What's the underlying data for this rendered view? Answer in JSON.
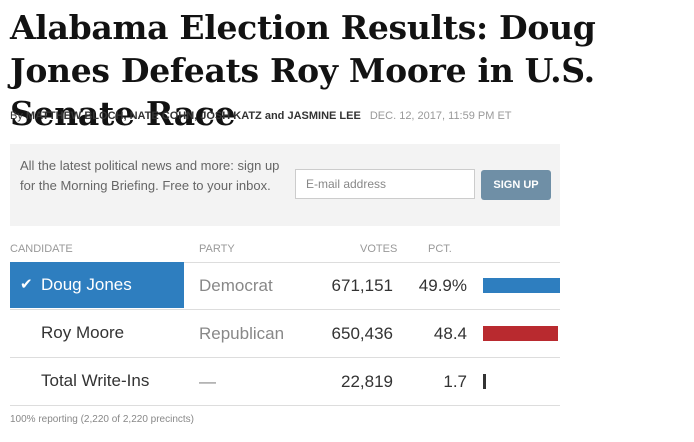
{
  "headline": "Alabama Election Results: Doug Jones Defeats Roy Moore in U.S. Senate Race",
  "byline": {
    "prefix": "By",
    "authors": "MATTHEW BLOCH, NATE COHN, JOSH KATZ and JASMINE LEE",
    "date": "DEC. 12, 2017,",
    "time": "11:59 PM ET"
  },
  "signup": {
    "text": "All the latest political news and more: sign up for the Morning Briefing. Free to your inbox.",
    "email_placeholder": "E-mail address",
    "button_label": "SIGN UP",
    "button_color": "#6f8fa6"
  },
  "table": {
    "headers": {
      "candidate": "CANDIDATE",
      "party": "PARTY",
      "votes": "VOTES",
      "pct": "PCT."
    },
    "rows": [
      {
        "candidate": "Doug Jones",
        "party": "Democrat",
        "votes": "671,151",
        "pct": "49.9%",
        "pct_value": 49.9,
        "winner": true,
        "check_icon": "checkmark-icon",
        "color": "#2e7ebf"
      },
      {
        "candidate": "Roy Moore",
        "party": "Republican",
        "votes": "650,436",
        "pct": "48.4",
        "pct_value": 48.4,
        "winner": false,
        "color": "#b92a2f"
      },
      {
        "candidate": "Total Write-Ins",
        "party": "—",
        "votes": "22,819",
        "pct": "1.7",
        "pct_value": 1.7,
        "winner": false,
        "color": "#333333"
      }
    ],
    "winner_color": "#2e7ebf"
  },
  "footnote": "100% reporting (2,220 of 2,220 precincts)"
}
